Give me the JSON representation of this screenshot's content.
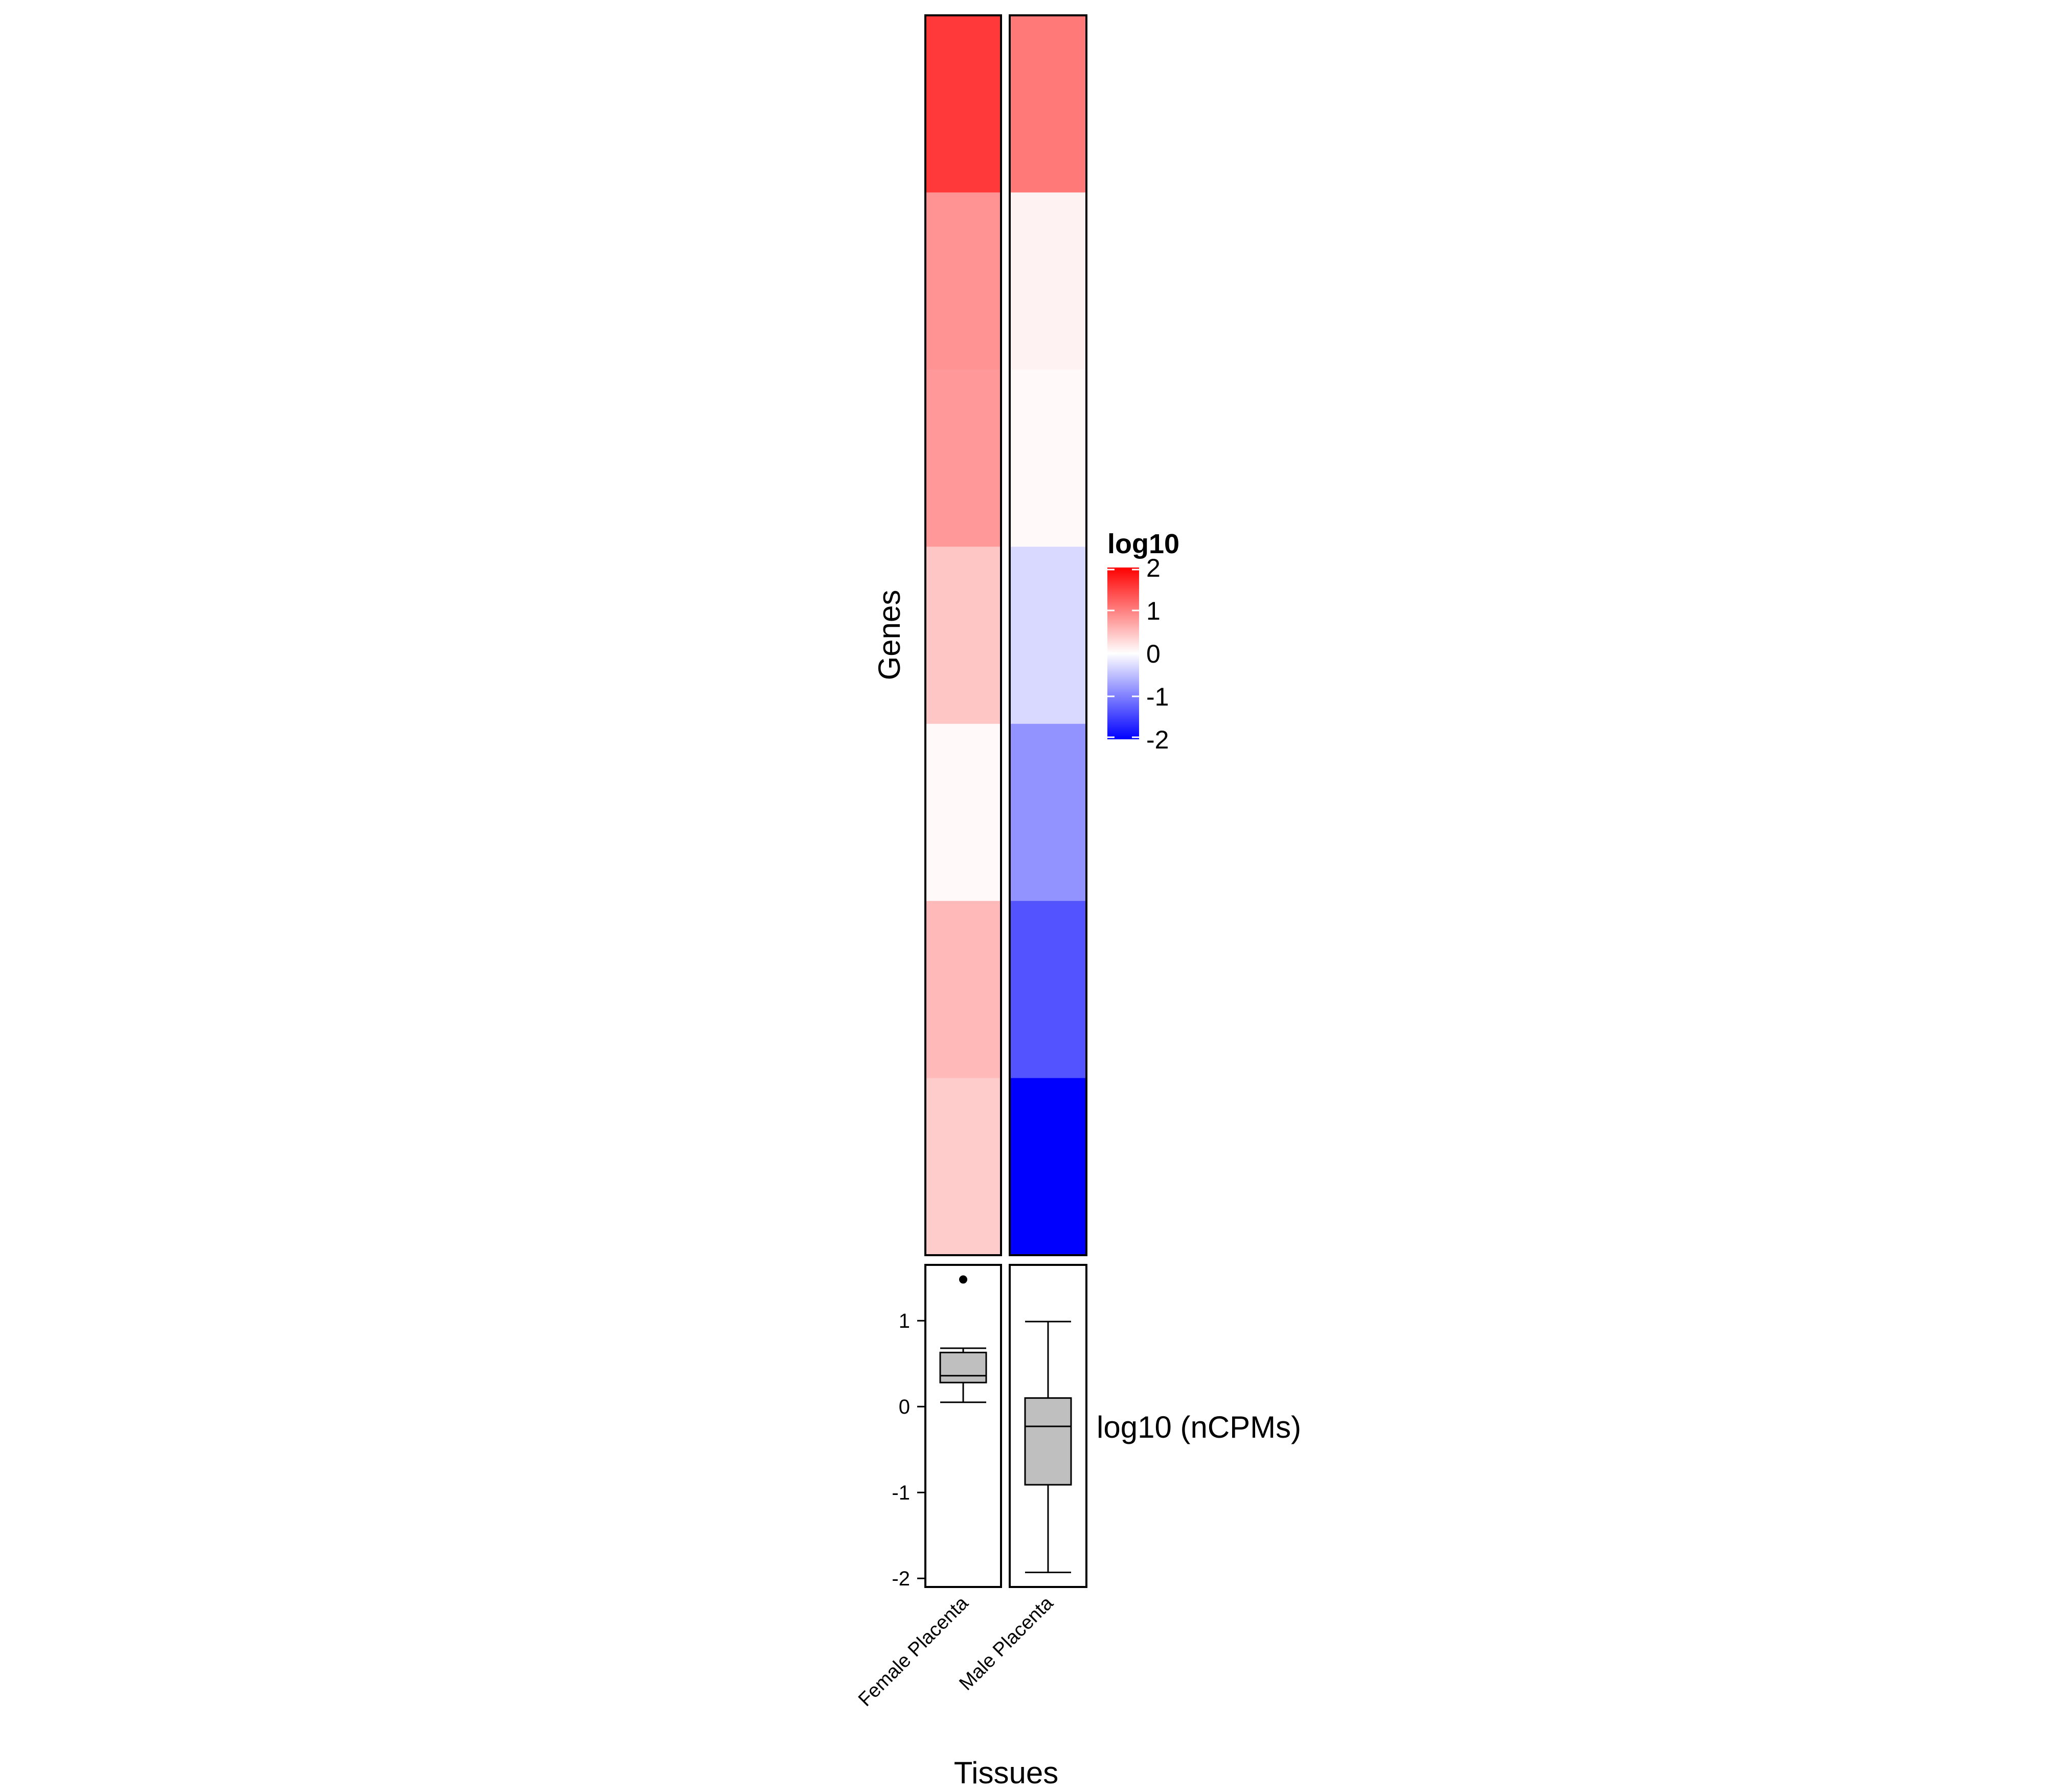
{
  "chart_data": [
    {
      "type": "heatmap",
      "ylabel": "Genes",
      "columns": [
        "Female Placenta",
        "Male Placenta"
      ],
      "values": [
        [
          1.55,
          1.05
        ],
        [
          0.85,
          0.1
        ],
        [
          0.8,
          0.05
        ],
        [
          0.45,
          -0.3
        ],
        [
          0.05,
          -0.85
        ],
        [
          0.55,
          -1.35
        ],
        [
          0.4,
          -2.0
        ]
      ],
      "legend": {
        "title": "log10",
        "ticks": [
          "2",
          "1",
          "0",
          "-1",
          "-2"
        ],
        "range": [
          -2,
          2
        ],
        "low_color": "#0000ff",
        "mid_color": "#ffffff",
        "high_color": "#ff0000",
        "placement": "right"
      }
    },
    {
      "type": "box",
      "xlabel": "Tissues",
      "ylabel": "log10 (nCPMs)",
      "ylim": [
        -2.1,
        1.65
      ],
      "yticks": [
        "1",
        "0",
        "-1",
        "-2"
      ],
      "categories": [
        "Female Placenta",
        "Male Placenta"
      ],
      "boxes": [
        {
          "whisker_low": 0.05,
          "q1": 0.28,
          "median": 0.36,
          "q3": 0.63,
          "whisker_high": 0.68,
          "outliers": [
            1.48
          ]
        },
        {
          "whisker_low": -1.93,
          "q1": -0.91,
          "median": -0.23,
          "q3": 0.1,
          "whisker_high": 0.99,
          "outliers": []
        }
      ]
    }
  ]
}
